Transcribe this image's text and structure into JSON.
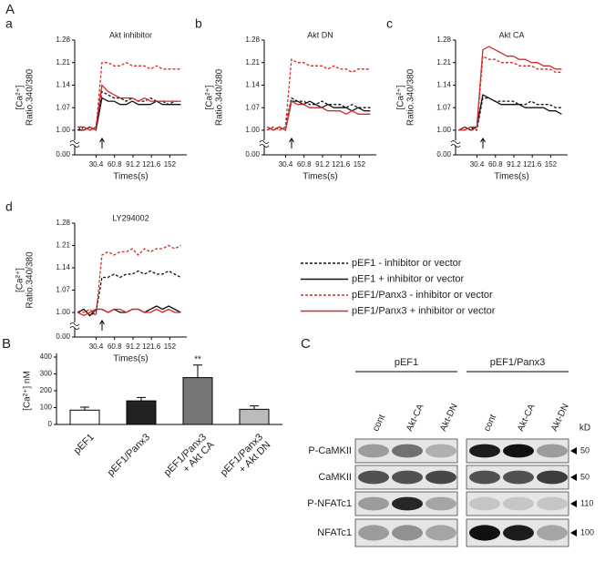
{
  "figure_label": "A",
  "chart_data": [
    {
      "type": "line",
      "panel": "a",
      "title": "Akt inhibitor",
      "ylabel": [
        "[Ca²⁺]",
        "Ratio.340/380"
      ],
      "xlabel": "Times(s)",
      "x": [
        0,
        10,
        20,
        30,
        40,
        50,
        60,
        70,
        80,
        90,
        100,
        110,
        120,
        130,
        140,
        150,
        160,
        170
      ],
      "xlim": [
        -5,
        180
      ],
      "xticks": [
        30.4,
        60.8,
        91.2,
        121.6,
        152
      ],
      "ylim": [
        0,
        1.28
      ],
      "ybreak": [
        0.01,
        0.98
      ],
      "yticks": [
        {
          "value": 0,
          "label": "0.00"
        },
        {
          "value": 1,
          "label": "1.00"
        },
        {
          "value": 1.07,
          "label": "1.07"
        },
        {
          "value": 1.14,
          "label": "1.14"
        },
        {
          "value": 1.21,
          "label": "1.21"
        },
        {
          "value": 1.28,
          "label": "1.28"
        }
      ],
      "series": [
        {
          "color": "#111111",
          "style": "dashed",
          "values": [
            1.0,
            1.01,
            1.0,
            1.01,
            1.12,
            1.11,
            1.1,
            1.1,
            1.09,
            1.1,
            1.09,
            1.09,
            1.1,
            1.09,
            1.09,
            1.08,
            1.09,
            1.09
          ]
        },
        {
          "color": "#111111",
          "style": "solid",
          "values": [
            1.0,
            1.0,
            1.01,
            1.0,
            1.1,
            1.09,
            1.09,
            1.08,
            1.08,
            1.09,
            1.08,
            1.08,
            1.08,
            1.09,
            1.08,
            1.08,
            1.08,
            1.08
          ]
        },
        {
          "color": "#d42a2a",
          "style": "dashed",
          "values": [
            1.01,
            1.0,
            1.01,
            1.0,
            1.21,
            1.21,
            1.2,
            1.2,
            1.21,
            1.2,
            1.2,
            1.2,
            1.19,
            1.2,
            1.19,
            1.19,
            1.19,
            1.19
          ]
        },
        {
          "color": "#d42a2a",
          "style": "solid",
          "values": [
            1.01,
            1.01,
            1.0,
            1.01,
            1.14,
            1.12,
            1.11,
            1.1,
            1.1,
            1.1,
            1.09,
            1.1,
            1.09,
            1.09,
            1.09,
            1.09,
            1.09,
            1.09
          ]
        }
      ]
    },
    {
      "type": "line",
      "panel": "b",
      "title": "Akt DN",
      "ylabel": [
        "[Ca²⁺]",
        "Ratio.340/380"
      ],
      "xlabel": "Times(s)",
      "x": [
        0,
        10,
        20,
        30,
        40,
        50,
        60,
        70,
        80,
        90,
        100,
        110,
        120,
        130,
        140,
        150,
        160,
        170
      ],
      "xlim": [
        -5,
        180
      ],
      "xticks": [
        30.4,
        60.8,
        91.2,
        121.6,
        152
      ],
      "ylim": [
        0,
        1.28
      ],
      "ybreak": [
        0.01,
        0.98
      ],
      "yticks": [
        {
          "value": 0,
          "label": "0.00"
        },
        {
          "value": 1,
          "label": "1.00"
        },
        {
          "value": 1.07,
          "label": "1.07"
        },
        {
          "value": 1.14,
          "label": "1.14"
        },
        {
          "value": 1.21,
          "label": "1.21"
        },
        {
          "value": 1.28,
          "label": "1.28"
        }
      ],
      "series": [
        {
          "color": "#111111",
          "style": "dashed",
          "values": [
            1.0,
            1.01,
            1.0,
            1.01,
            1.1,
            1.09,
            1.09,
            1.08,
            1.08,
            1.09,
            1.08,
            1.08,
            1.08,
            1.07,
            1.08,
            1.07,
            1.07,
            1.07
          ]
        },
        {
          "color": "#111111",
          "style": "solid",
          "values": [
            1.01,
            1.0,
            1.01,
            1.0,
            1.09,
            1.09,
            1.08,
            1.09,
            1.08,
            1.07,
            1.08,
            1.07,
            1.07,
            1.07,
            1.06,
            1.07,
            1.06,
            1.06
          ]
        },
        {
          "color": "#d42a2a",
          "style": "dashed",
          "values": [
            1.0,
            1.01,
            1.0,
            1.01,
            1.22,
            1.21,
            1.21,
            1.2,
            1.2,
            1.2,
            1.19,
            1.2,
            1.19,
            1.19,
            1.18,
            1.19,
            1.19,
            1.19
          ]
        },
        {
          "color": "#d42a2a",
          "style": "solid",
          "values": [
            1.01,
            1.0,
            1.01,
            1.0,
            1.09,
            1.08,
            1.08,
            1.07,
            1.07,
            1.07,
            1.06,
            1.06,
            1.06,
            1.05,
            1.06,
            1.05,
            1.05,
            1.05
          ]
        }
      ]
    },
    {
      "type": "line",
      "panel": "c",
      "title": "Akt CA",
      "ylabel": [
        "[Ca²⁺]",
        "Ratio.340/380"
      ],
      "xlabel": "Times(s)",
      "x": [
        0,
        10,
        20,
        30,
        40,
        50,
        60,
        70,
        80,
        90,
        100,
        110,
        120,
        130,
        140,
        150,
        160,
        170
      ],
      "xlim": [
        -5,
        180
      ],
      "xticks": [
        30.4,
        60.8,
        91.2,
        121.6,
        152
      ],
      "ylim": [
        0,
        1.28
      ],
      "ybreak": [
        0.01,
        0.98
      ],
      "yticks": [
        {
          "value": 0,
          "label": "0.00"
        },
        {
          "value": 1,
          "label": "1.00"
        },
        {
          "value": 1.07,
          "label": "1.07"
        },
        {
          "value": 1.14,
          "label": "1.14"
        },
        {
          "value": 1.21,
          "label": "1.21"
        },
        {
          "value": 1.28,
          "label": "1.28"
        }
      ],
      "series": [
        {
          "color": "#111111",
          "style": "dashed",
          "values": [
            1.0,
            1.0,
            1.01,
            1.0,
            1.1,
            1.1,
            1.09,
            1.09,
            1.09,
            1.09,
            1.08,
            1.08,
            1.09,
            1.08,
            1.08,
            1.08,
            1.07,
            1.07
          ]
        },
        {
          "color": "#111111",
          "style": "solid",
          "values": [
            1.0,
            1.01,
            1.0,
            1.01,
            1.11,
            1.1,
            1.09,
            1.08,
            1.08,
            1.08,
            1.08,
            1.07,
            1.07,
            1.07,
            1.07,
            1.06,
            1.06,
            1.05
          ]
        },
        {
          "color": "#d42a2a",
          "style": "dashed",
          "values": [
            1.0,
            1.01,
            1.0,
            1.0,
            1.23,
            1.22,
            1.22,
            1.21,
            1.21,
            1.21,
            1.2,
            1.2,
            1.2,
            1.19,
            1.19,
            1.19,
            1.18,
            1.18
          ]
        },
        {
          "color": "#d42a2a",
          "style": "solid",
          "values": [
            1.0,
            1.0,
            1.01,
            1.01,
            1.25,
            1.26,
            1.25,
            1.24,
            1.23,
            1.23,
            1.22,
            1.22,
            1.21,
            1.21,
            1.2,
            1.2,
            1.19,
            1.19
          ]
        }
      ]
    },
    {
      "type": "line",
      "panel": "d",
      "title": "LY294002",
      "ylabel": [
        "[Ca²⁺]",
        "Ratio.340/380"
      ],
      "xlabel": "Times(s)",
      "legend": "right",
      "x": [
        0,
        10,
        20,
        30,
        40,
        50,
        60,
        70,
        80,
        90,
        100,
        110,
        120,
        130,
        140,
        150,
        160,
        170
      ],
      "xlim": [
        -5,
        180
      ],
      "xticks": [
        30.4,
        60.8,
        91.2,
        121.6,
        152
      ],
      "ylim": [
        0,
        1.28
      ],
      "ybreak": [
        0.01,
        0.98
      ],
      "yticks": [
        {
          "value": 0,
          "label": "0.00"
        },
        {
          "value": 1,
          "label": "1.00"
        },
        {
          "value": 1.07,
          "label": "1.07"
        },
        {
          "value": 1.14,
          "label": "1.14"
        },
        {
          "value": 1.21,
          "label": "1.21"
        },
        {
          "value": 1.28,
          "label": "1.28"
        }
      ],
      "series": [
        {
          "name": "pEF1 - inhibitor or vector",
          "color": "#111111",
          "style": "dashed",
          "values": [
            1.0,
            1.01,
            0.99,
            1.0,
            1.11,
            1.11,
            1.12,
            1.11,
            1.12,
            1.12,
            1.13,
            1.12,
            1.13,
            1.12,
            1.12,
            1.13,
            1.12,
            1.11
          ]
        },
        {
          "name": "pEF1 + inhibitor or vector",
          "color": "#111111",
          "style": "solid",
          "values": [
            1.0,
            1.01,
            0.99,
            1.01,
            1.01,
            1.0,
            1.01,
            1.0,
            1.0,
            1.01,
            1.01,
            1.0,
            1.01,
            1.02,
            1.01,
            1.02,
            1.01,
            1.0
          ]
        },
        {
          "name": "pEF1/Panx3 - inhibitor or vector",
          "color": "#d42a2a",
          "style": "dashed",
          "values": [
            1.0,
            1.0,
            1.01,
            0.99,
            1.18,
            1.19,
            1.18,
            1.19,
            1.19,
            1.2,
            1.18,
            1.2,
            1.19,
            1.2,
            1.2,
            1.21,
            1.2,
            1.21
          ]
        },
        {
          "name": "pEF1/Panx3 + inhibitor or vector",
          "color": "#d42a2a",
          "style": "solid",
          "values": [
            1.0,
            0.99,
            1.0,
            1.01,
            1.01,
            1.0,
            1.01,
            1.01,
            1.0,
            1.01,
            1.01,
            1.0,
            1.0,
            1.01,
            1.0,
            1.01,
            1.0,
            1.0
          ]
        }
      ]
    },
    {
      "type": "bar",
      "panel": "B",
      "ylabel": "[Ca²⁺] nM",
      "categories": [
        "pEF1",
        "pEF1/Panx3",
        "pEF1/Panx3\n+ Akt CA",
        "pEF1/Panx3\n+ Akt DN"
      ],
      "values": [
        85,
        140,
        278,
        90
      ],
      "errors": [
        18,
        20,
        75,
        20
      ],
      "colors": [
        "#ffffff",
        "#222222",
        "#777777",
        "#bbbbbb"
      ],
      "ylim": [
        0,
        400
      ],
      "yticks": [
        0,
        100,
        200,
        300,
        400
      ],
      "annotations": [
        {
          "text": "**",
          "x": "pEF1/Panx3\n+ Akt CA"
        }
      ]
    }
  ],
  "blot": {
    "panel": "C",
    "groups": [
      "pEF1",
      "pEF1/Panx3"
    ],
    "lanes": [
      "cont",
      "Akt-CA",
      "Akt-DN",
      "cont",
      "Akt-CA",
      "Akt-DN"
    ],
    "rows": [
      "P-CaMKII",
      "CaMKII",
      "P-NFATc1",
      "NFATc1"
    ],
    "unit": "kD",
    "markers": [
      50,
      50,
      110,
      100
    ]
  }
}
